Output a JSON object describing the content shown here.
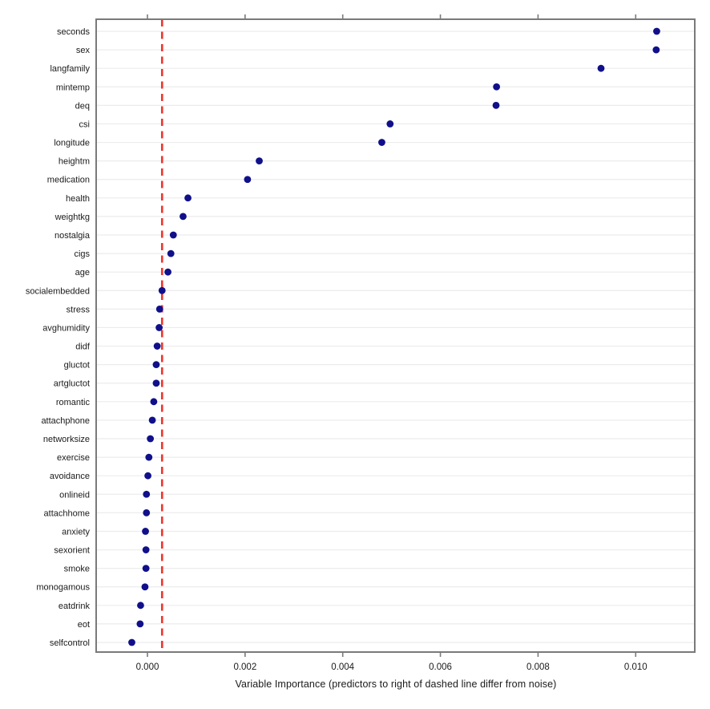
{
  "chart_data": {
    "type": "scatter",
    "subtype": "horizontal-dotplot",
    "title": "",
    "xlabel": "Variable Importance (predictors to right of dashed line differ from noise)",
    "ylabel": "",
    "categories": [
      "seconds",
      "sex",
      "langfamily",
      "mintemp",
      "deq",
      "csi",
      "longitude",
      "heightm",
      "medication",
      "health",
      "weightkg",
      "nostalgia",
      "cigs",
      "age",
      "socialembedded",
      "stress",
      "avghumidity",
      "didf",
      "gluctot",
      "artgluctot",
      "romantic",
      "attachphone",
      "networksize",
      "exercise",
      "avoidance",
      "onlineid",
      "attachhome",
      "anxiety",
      "sexorient",
      "smoke",
      "monogamous",
      "eatdrink",
      "eot",
      "selfcontrol"
    ],
    "values": [
      0.01043,
      0.01042,
      0.00929,
      0.00715,
      0.00714,
      0.00497,
      0.0048,
      0.00229,
      0.00205,
      0.00083,
      0.00073,
      0.00053,
      0.00048,
      0.00042,
      0.0003,
      0.00025,
      0.00024,
      0.0002,
      0.00018,
      0.00018,
      0.00013,
      0.0001,
      6e-05,
      3e-05,
      1e-05,
      -2e-05,
      -2e-05,
      -4e-05,
      -3e-05,
      -3e-05,
      -5e-05,
      -0.00014,
      -0.00015,
      -0.00032
    ],
    "x_ticks": [
      0.0,
      0.002,
      0.004,
      0.006,
      0.008,
      0.01
    ],
    "x_tick_labels": [
      "0.000",
      "0.002",
      "0.004",
      "0.006",
      "0.008",
      "0.010"
    ],
    "xlim": [
      -0.00105,
      0.01121
    ],
    "reference_line": {
      "value": 0.0003,
      "style": "dashed"
    },
    "grid": true,
    "legend": false,
    "colors": {
      "point": "#10108b",
      "reference": "#ee352b",
      "border": "#7a7a7a",
      "gridline": "#ececec",
      "tick": "#7a7a7a",
      "text": "#1a1a1a"
    }
  }
}
